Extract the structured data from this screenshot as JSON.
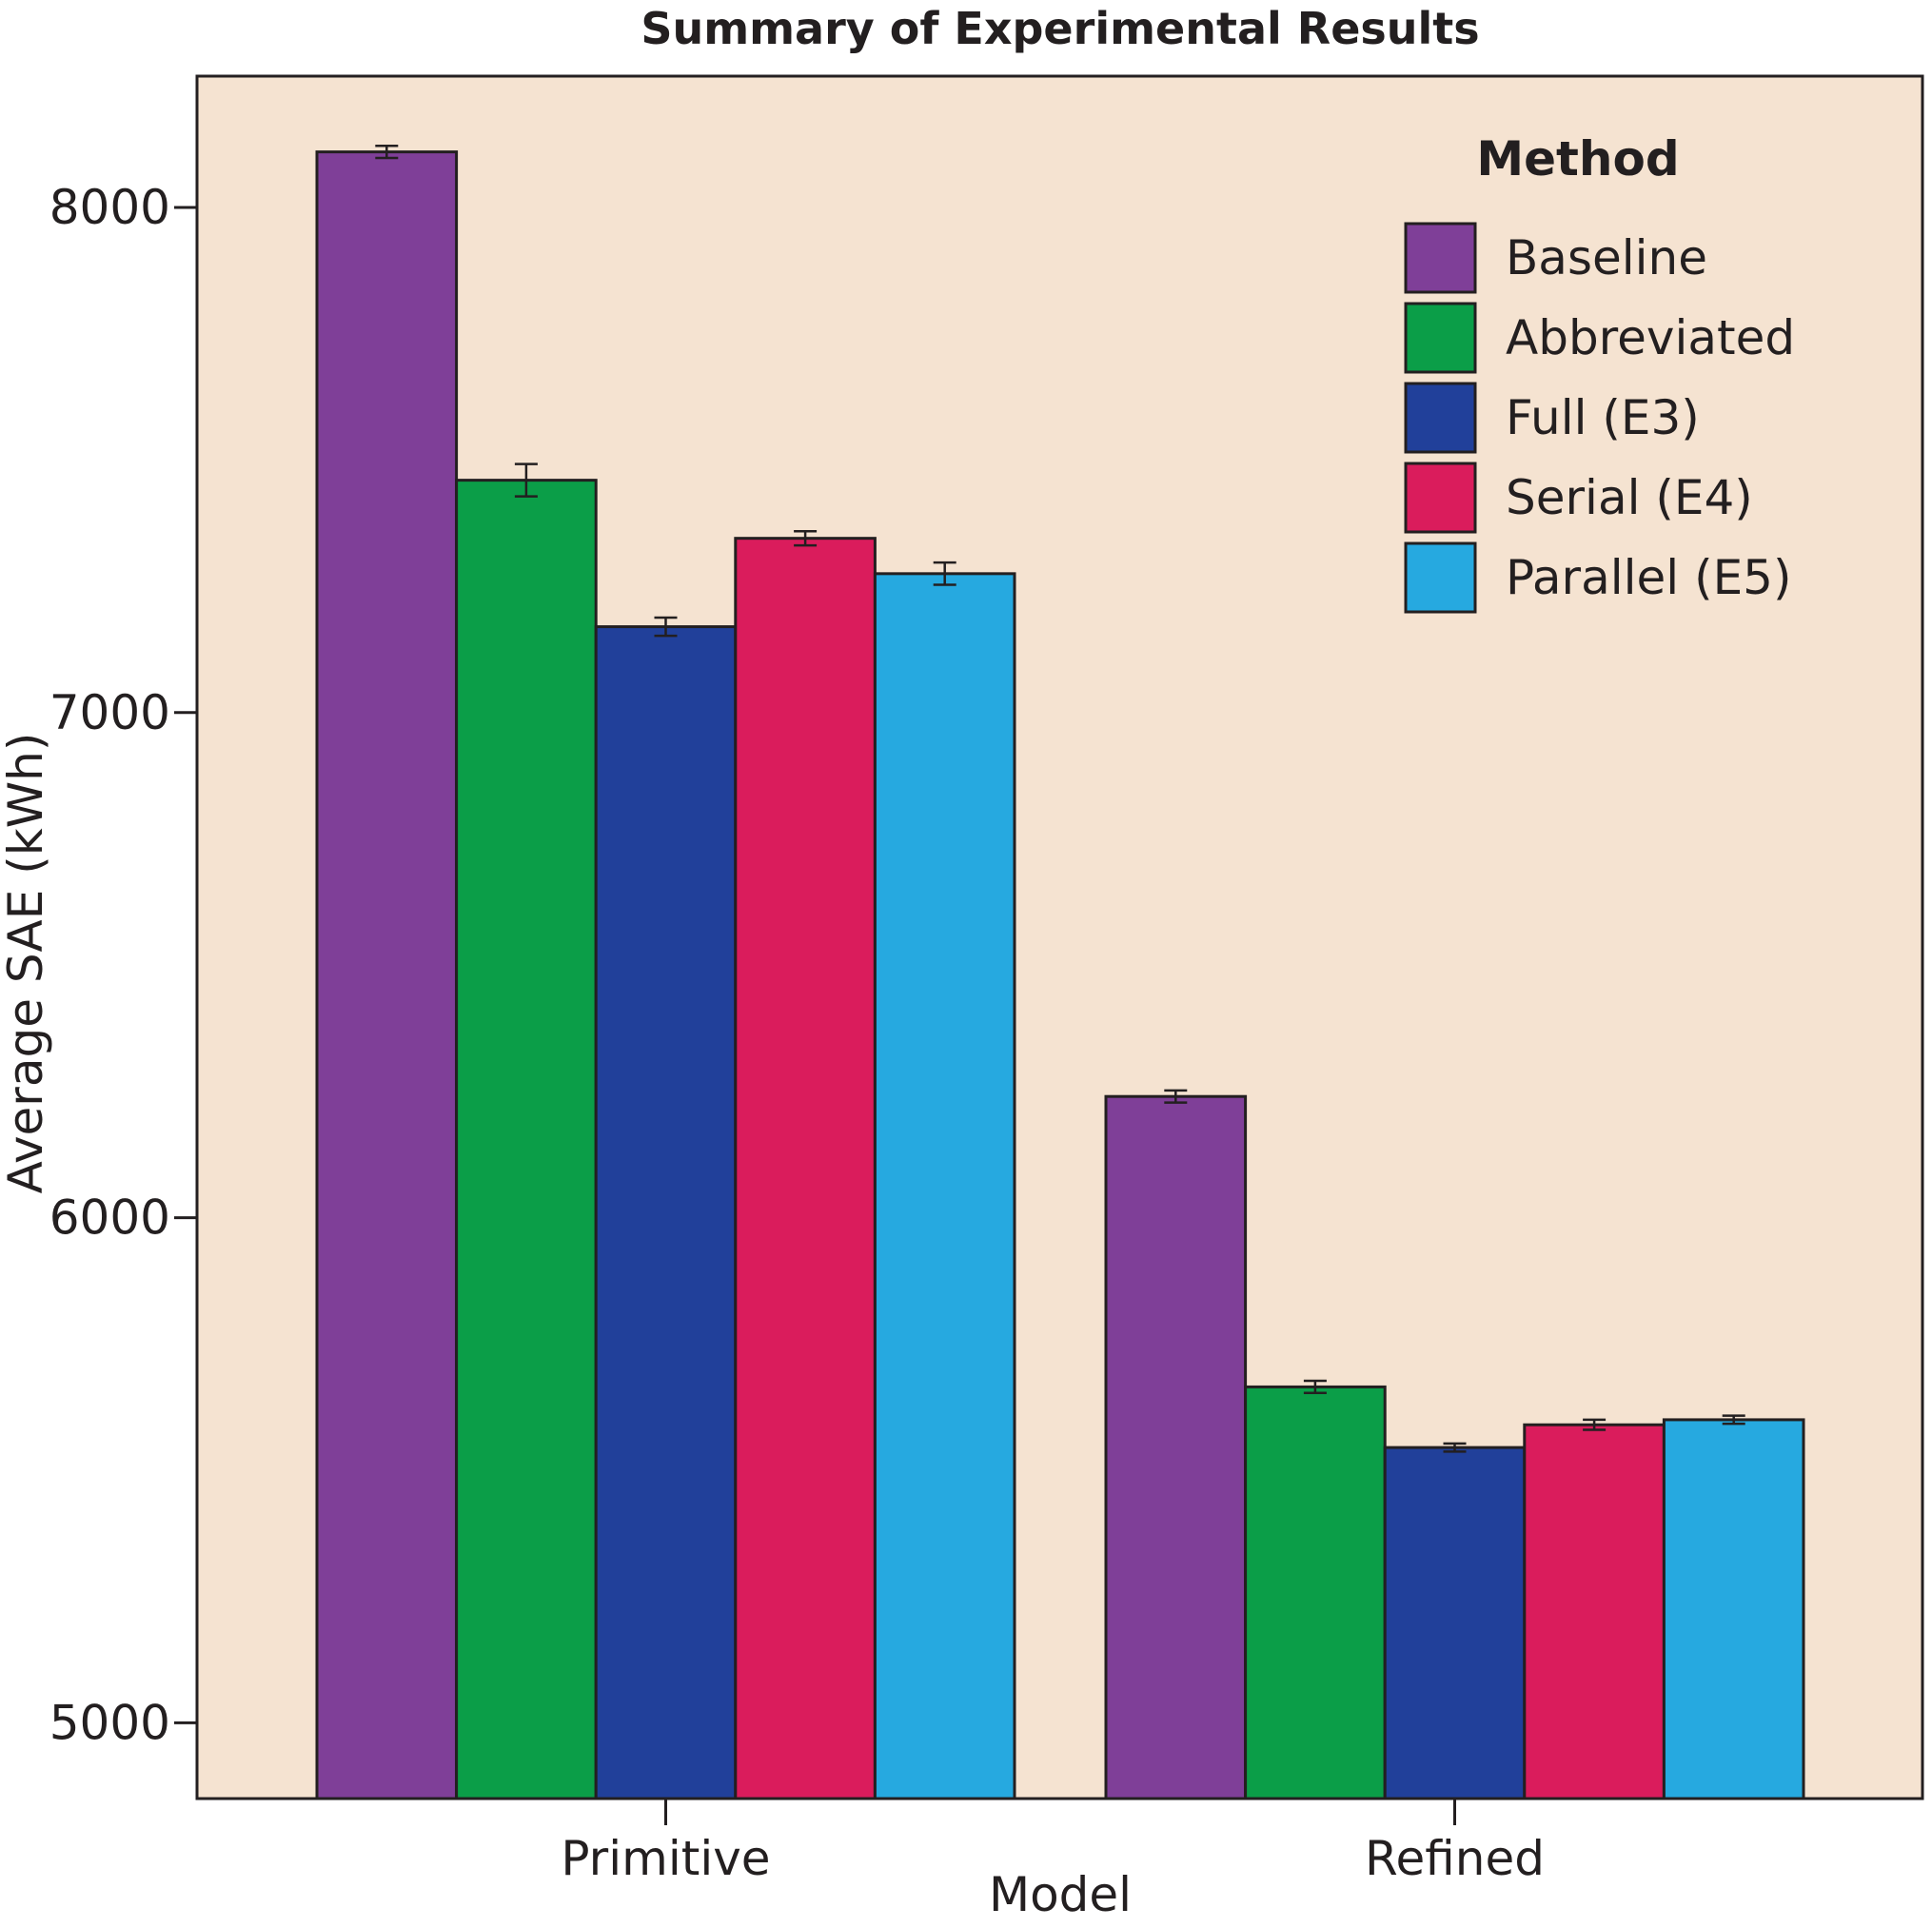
{
  "chart_data": {
    "type": "bar",
    "title": "Summary of Experimental Results",
    "xlabel": "Model",
    "ylabel": "Average SAE (kWh)",
    "categories": [
      "Primitive",
      "Refined"
    ],
    "ylim": [
      4850,
      8260
    ],
    "yticks": [
      5000,
      6000,
      7000,
      8000
    ],
    "background_color": "#f5e3d1",
    "grid": false,
    "error_bars": true,
    "legend": {
      "title": "Method",
      "position": "top-right"
    },
    "series": [
      {
        "name": "Baseline",
        "color": "#7f3f98",
        "values": [
          8110,
          6240
        ],
        "errors": [
          12,
          12
        ]
      },
      {
        "name": "Abbreviated",
        "color": "#0b9e48",
        "values": [
          7460,
          5665
        ],
        "errors": [
          32,
          12
        ]
      },
      {
        "name": "Full (E3)",
        "color": "#21409a",
        "values": [
          7170,
          5545
        ],
        "errors": [
          18,
          8
        ]
      },
      {
        "name": "Serial (E4)",
        "color": "#da1c5c",
        "values": [
          7345,
          5590
        ],
        "errors": [
          14,
          10
        ]
      },
      {
        "name": "Parallel (E5)",
        "color": "#26a9e0",
        "values": [
          7275,
          5600
        ],
        "errors": [
          22,
          8
        ]
      }
    ]
  }
}
